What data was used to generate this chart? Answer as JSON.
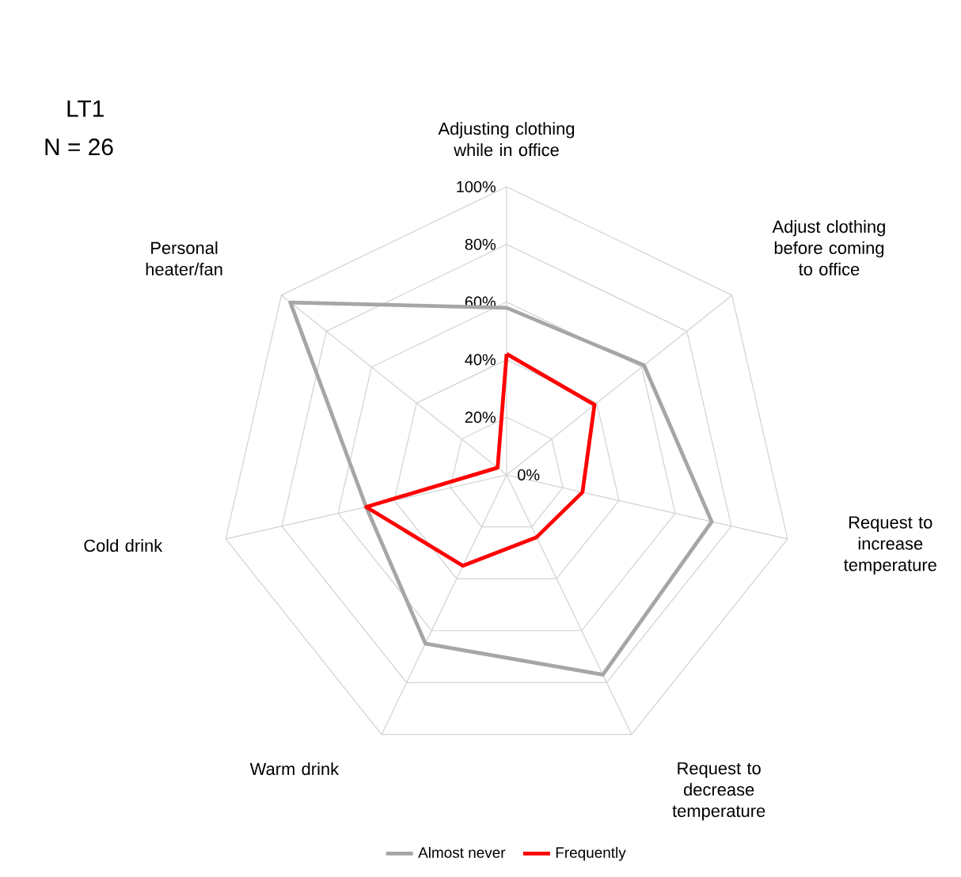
{
  "chart_data": {
    "type": "radar",
    "title": "LT1",
    "subtitle": "N = 26",
    "categories": [
      "Adjusting clothing while in office",
      "Adjust clothing before coming to office",
      "Request to increase temperature",
      "Request to decrease temperature",
      "Warm drink",
      "Cold drink",
      "Personal heater/fan"
    ],
    "series": [
      {
        "name": "Almost never",
        "color": "#a6a6a6",
        "values": [
          58,
          61,
          73,
          77,
          65,
          50,
          96
        ]
      },
      {
        "name": "Frequently",
        "color": "#ff0000",
        "values": [
          42,
          39,
          27,
          24,
          35,
          50,
          4
        ]
      }
    ],
    "ylim": [
      0,
      100
    ],
    "yticks": [
      {
        "value": 0,
        "label": "0%"
      },
      {
        "value": 20,
        "label": "20%"
      },
      {
        "value": 40,
        "label": "40%"
      },
      {
        "value": 60,
        "label": "60%"
      },
      {
        "value": 80,
        "label": "80%"
      },
      {
        "value": 100,
        "label": "100%"
      }
    ],
    "grid": true,
    "legend": "bottom"
  }
}
